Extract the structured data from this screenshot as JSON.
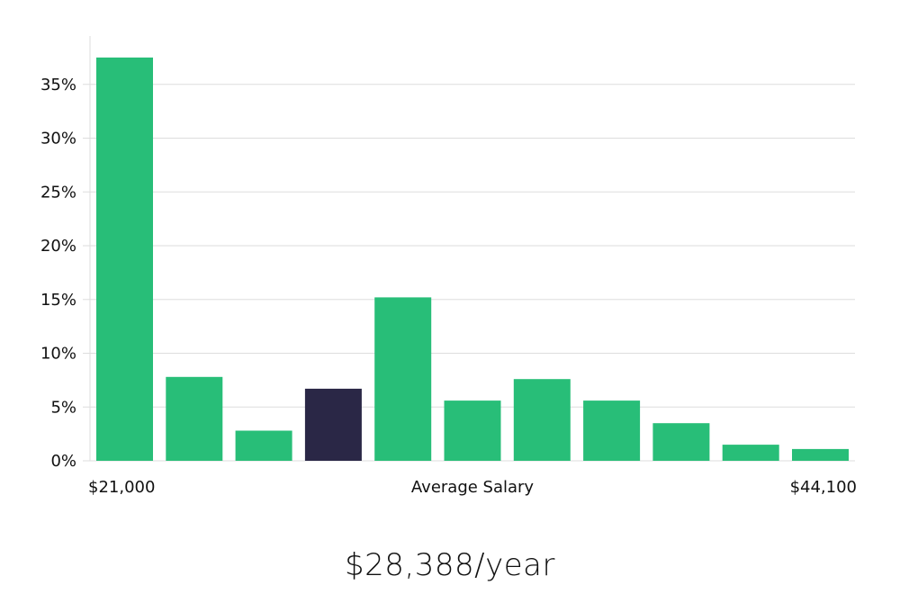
{
  "chart_data": {
    "type": "bar",
    "values": [
      37.5,
      7.8,
      2.8,
      6.7,
      15.2,
      5.6,
      7.6,
      5.6,
      3.5,
      1.5,
      1.1
    ],
    "highlight_index": 3,
    "ylim": [
      0,
      39.5
    ],
    "yticks": [
      0,
      5,
      10,
      15,
      20,
      25,
      30,
      35
    ],
    "ytick_labels": [
      "0%",
      "5%",
      "10%",
      "15%",
      "20%",
      "25%",
      "30%",
      "35%"
    ],
    "x_min_label": "$21,000",
    "x_max_label": "$44,100",
    "xlabel": "Average Salary",
    "grid": true,
    "colors": {
      "bar": "#28be78",
      "highlight": "#2a2746",
      "grid": "#dddddd",
      "text": "#111111"
    }
  },
  "salary": {
    "text": "$28,388/year"
  }
}
